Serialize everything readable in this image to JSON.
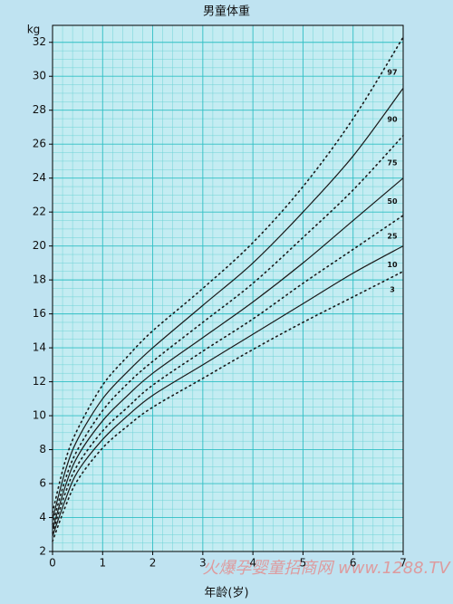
{
  "chart_data": {
    "type": "line",
    "title": "男童体重",
    "y_label": "kg",
    "x_label": "年龄(岁)",
    "watermark": "火爆孕婴童招商网 www.1288.TV",
    "x": [
      0,
      0.25,
      0.5,
      1,
      1.5,
      2,
      3,
      4,
      5,
      6,
      7
    ],
    "series": [
      {
        "name": "97",
        "color": "#1a1a1a",
        "dotted": true,
        "values": [
          4.3,
          7.3,
          9.2,
          11.8,
          13.5,
          15.0,
          17.5,
          20.2,
          23.5,
          27.5,
          32.3
        ]
      },
      {
        "name": "90",
        "color": "#1a1a1a",
        "dotted": false,
        "values": [
          3.9,
          6.7,
          8.6,
          11.0,
          12.6,
          14.0,
          16.5,
          19.0,
          22.0,
          25.3,
          29.3
        ]
      },
      {
        "name": "75",
        "color": "#1a1a1a",
        "dotted": true,
        "values": [
          3.6,
          6.2,
          8.0,
          10.3,
          11.9,
          13.2,
          15.5,
          17.8,
          20.5,
          23.3,
          26.5
        ]
      },
      {
        "name": "50",
        "color": "#1a1a1a",
        "dotted": false,
        "values": [
          3.3,
          5.8,
          7.6,
          9.7,
          11.2,
          12.5,
          14.6,
          16.7,
          19.0,
          21.5,
          24.0
        ]
      },
      {
        "name": "25",
        "color": "#1a1a1a",
        "dotted": true,
        "values": [
          3.1,
          5.4,
          7.1,
          9.1,
          10.5,
          11.8,
          13.8,
          15.7,
          17.8,
          19.8,
          21.8
        ]
      },
      {
        "name": "10",
        "color": "#1a1a1a",
        "dotted": false,
        "values": [
          2.9,
          5.0,
          6.7,
          8.6,
          10.0,
          11.2,
          13.0,
          14.8,
          16.6,
          18.4,
          20.0
        ]
      },
      {
        "name": "3",
        "color": "#1a1a1a",
        "dotted": true,
        "values": [
          2.6,
          4.6,
          6.2,
          8.1,
          9.4,
          10.5,
          12.2,
          13.9,
          15.5,
          17.0,
          18.5
        ]
      }
    ],
    "xlim": [
      0,
      7
    ],
    "xticks": [
      0,
      1,
      2,
      3,
      4,
      5,
      6,
      7
    ],
    "ylim": [
      2,
      33
    ],
    "yticks": [
      2,
      4,
      6,
      8,
      10,
      12,
      14,
      16,
      18,
      20,
      22,
      24,
      26,
      28,
      30,
      32
    ],
    "grid": true
  }
}
